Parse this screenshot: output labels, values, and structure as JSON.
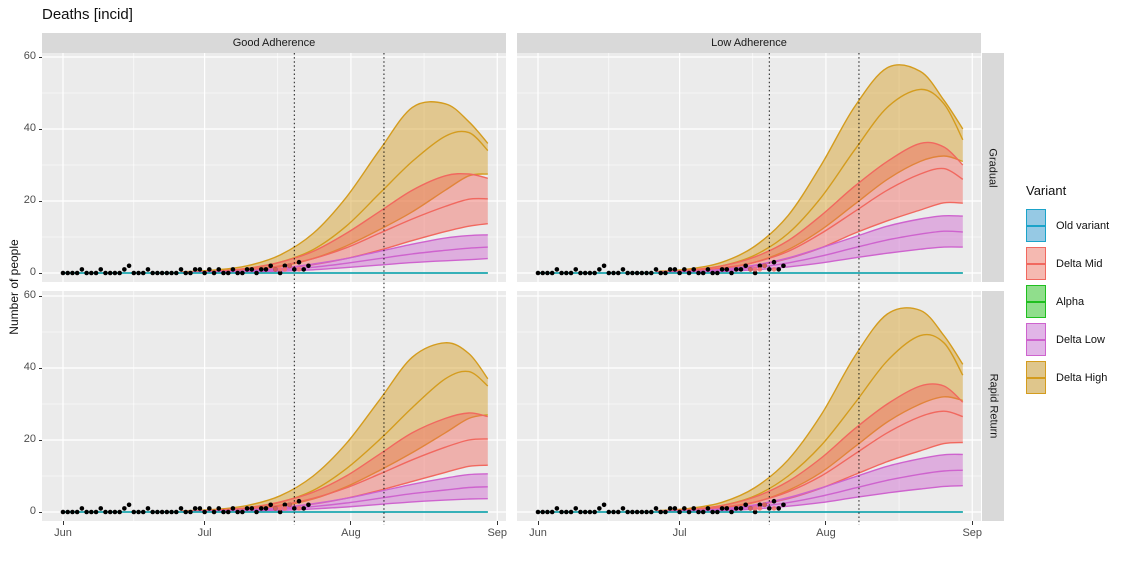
{
  "title": "Deaths [incid]",
  "legend": {
    "title": "Variant",
    "items": [
      {
        "id": "old_variant",
        "label": "Old variant",
        "line": "#1ba3c9",
        "fill": "#96c9e4"
      },
      {
        "id": "delta_mid",
        "label": "Delta Mid",
        "line": "#f1685f",
        "fill": "#f5b9b1"
      },
      {
        "id": "alpha",
        "label": "Alpha",
        "line": "#1fbf1f",
        "fill": "#90de8c"
      },
      {
        "id": "delta_low",
        "label": "Delta Low",
        "line": "#ce63ce",
        "fill": "#e1b5e7"
      },
      {
        "id": "delta_high",
        "label": "Delta High",
        "line": "#d49c1e",
        "fill": "#dfc68c"
      }
    ]
  },
  "chart_data": {
    "type": "area",
    "title": "Deaths [incid]",
    "xlabel": "",
    "ylabel": "Number of people",
    "y_ticks": [
      0,
      20,
      40,
      60
    ],
    "y_minor": [
      10,
      30,
      50
    ],
    "ylim": [
      0,
      60
    ],
    "x_ticks": {
      "labels": [
        "Jun",
        "Jul",
        "Aug",
        "Sep"
      ],
      "days": [
        0,
        30,
        61,
        92
      ]
    },
    "x_minor_days": [
      15,
      45.5,
      76.5
    ],
    "vlines_days": [
      49,
      68
    ],
    "grid": "on",
    "legend_position": "right",
    "facets": {
      "cols": [
        "Good Adherence",
        "Low Adherence"
      ],
      "rows": [
        "Gradual",
        "Rapid Return"
      ]
    },
    "series_days": [
      25,
      32,
      39,
      46,
      53,
      60,
      67,
      74,
      81,
      86,
      90
    ],
    "panels": [
      {
        "facet_col": "Good Adherence",
        "facet_row": "Gradual",
        "series": {
          "delta_high": {
            "hi": [
              0.3,
              0.8,
              2,
              5,
              11,
              21,
              34,
              46,
              47,
              42,
              36
            ],
            "mid": [
              0.2,
              0.5,
              1.2,
              3,
              6.5,
              13,
              22,
              31,
              38,
              39,
              34
            ],
            "lo": [
              0.1,
              0.3,
              0.8,
              1.8,
              4,
              7.5,
              12,
              17,
              23,
              27,
              27.5
            ]
          },
          "delta_mid": {
            "hi": [
              0.2,
              0.5,
              1.3,
              3,
              6,
              11,
              17,
              23,
              27,
              27.5,
              26.3
            ],
            "mid": [
              0.15,
              0.35,
              0.9,
              2,
              4,
              7,
              11,
              15,
              18.5,
              20.5,
              20.6
            ],
            "lo": [
              0.1,
              0.2,
              0.5,
              1.2,
              2.3,
              4,
              6.3,
              9,
              11.5,
              13,
              13.7
            ]
          },
          "delta_low": {
            "hi": [
              0.1,
              0.3,
              0.6,
              1.3,
              2.5,
              4,
              6,
              8,
              9.7,
              10.4,
              10.6
            ],
            "mid": [
              0.08,
              0.2,
              0.4,
              0.9,
              1.6,
              2.7,
              4,
              5.3,
              6.3,
              6.9,
              7.2
            ],
            "lo": [
              0.05,
              0.12,
              0.25,
              0.5,
              0.9,
              1.5,
              2.2,
              2.9,
              3.4,
              3.7,
              4
            ]
          },
          "alpha": {
            "flat": 0
          },
          "old_variant": {
            "flat": 0
          }
        }
      },
      {
        "facet_col": "Low Adherence",
        "facet_row": "Gradual",
        "series": {
          "delta_high": {
            "hi": [
              0.4,
              1.1,
              3,
              7.5,
              16,
              30,
              46,
              57,
              56,
              48,
              40
            ],
            "mid": [
              0.3,
              0.8,
              2,
              5,
              11,
              21,
              34,
              46,
              51,
              47,
              37
            ],
            "lo": [
              0.15,
              0.5,
              1.2,
              3,
              6.5,
              12,
              19,
              26,
              31,
              32.5,
              31
            ]
          },
          "delta_mid": {
            "hi": [
              0.3,
              0.8,
              2,
              4.5,
              9,
              16,
              24,
              31,
              36,
              35,
              30
            ],
            "mid": [
              0.2,
              0.55,
              1.4,
              3,
              6,
              11,
              17,
              23,
              27.5,
              29,
              26
            ],
            "lo": [
              0.12,
              0.35,
              0.9,
              2,
              4,
              7,
              11,
              14.5,
              17.5,
              19.5,
              19.4
            ]
          },
          "delta_low": {
            "hi": [
              0.15,
              0.4,
              1,
              2.2,
              4.2,
              7,
              10,
              13,
              15,
              15.9,
              15.8
            ],
            "mid": [
              0.1,
              0.3,
              0.7,
              1.5,
              2.8,
              4.7,
              7,
              9.2,
              10.8,
              11.6,
              11.4
            ],
            "lo": [
              0.06,
              0.18,
              0.4,
              0.9,
              1.7,
              2.8,
              4.2,
              5.5,
              6.6,
              7.2,
              7.2
            ]
          },
          "alpha": {
            "flat": 0
          },
          "old_variant": {
            "flat": 0
          }
        }
      },
      {
        "facet_col": "Good Adherence",
        "facet_row": "Rapid Return",
        "series": {
          "delta_high": {
            "hi": [
              0.3,
              0.7,
              1.8,
              4.5,
              10,
              19,
              31,
              43,
              47,
              44,
              37
            ],
            "mid": [
              0.2,
              0.45,
              1.1,
              2.7,
              6,
              12,
              20,
              29,
              37,
              39,
              35
            ],
            "lo": [
              0.1,
              0.28,
              0.7,
              1.6,
              3.6,
              7,
              11.5,
              16.5,
              22,
              26,
              27
            ]
          },
          "delta_mid": {
            "hi": [
              0.2,
              0.5,
              1.2,
              2.8,
              5.5,
              10,
              16,
              22,
              26,
              27.5,
              26.5
            ],
            "mid": [
              0.15,
              0.33,
              0.8,
              1.9,
              3.8,
              6.7,
              10.5,
              14.5,
              18,
              20,
              20.3
            ],
            "lo": [
              0.1,
              0.2,
              0.5,
              1.1,
              2.2,
              3.8,
              6,
              8.5,
              11,
              12.7,
              13
            ]
          },
          "delta_low": {
            "hi": [
              0.1,
              0.28,
              0.6,
              1.2,
              2.3,
              3.8,
              5.7,
              7.7,
              9.4,
              10.4,
              10.6
            ],
            "mid": [
              0.08,
              0.18,
              0.38,
              0.85,
              1.5,
              2.5,
              3.8,
              5.1,
              6.1,
              6.8,
              7
            ],
            "lo": [
              0.05,
              0.11,
              0.23,
              0.47,
              0.85,
              1.4,
              2.1,
              2.8,
              3.3,
              3.6,
              3.7
            ]
          },
          "alpha": {
            "flat": 0
          },
          "old_variant": {
            "flat": 0
          }
        }
      },
      {
        "facet_col": "Low Adherence",
        "facet_row": "Rapid Return",
        "series": {
          "delta_high": {
            "hi": [
              0.35,
              1,
              2.7,
              6.8,
              14.5,
              27,
              43,
              55,
              56,
              49,
              41
            ],
            "mid": [
              0.25,
              0.7,
              1.8,
              4.5,
              10,
              18.5,
              30,
              42,
              49,
              47,
              38
            ],
            "lo": [
              0.13,
              0.45,
              1.1,
              2.7,
              6,
              11,
              18,
              25,
              30,
              32,
              31
            ]
          },
          "delta_mid": {
            "hi": [
              0.25,
              0.7,
              1.8,
              4.2,
              8.5,
              15,
              23,
              30,
              35,
              35,
              30.5
            ],
            "mid": [
              0.18,
              0.5,
              1.3,
              2.8,
              5.6,
              10,
              16,
              22,
              26.5,
              28,
              26.5
            ],
            "lo": [
              0.1,
              0.3,
              0.8,
              1.8,
              3.7,
              6.6,
              10.3,
              14,
              17,
              19,
              19.3
            ]
          },
          "delta_low": {
            "hi": [
              0.13,
              0.36,
              0.9,
              2,
              4,
              6.7,
              9.7,
              12.7,
              14.8,
              15.9,
              16
            ],
            "mid": [
              0.09,
              0.27,
              0.64,
              1.4,
              2.6,
              4.4,
              6.6,
              8.8,
              10.5,
              11.4,
              11.6
            ],
            "lo": [
              0.055,
              0.16,
              0.37,
              0.84,
              1.6,
              2.6,
              4,
              5.3,
              6.4,
              7.1,
              7.3
            ]
          },
          "alpha": {
            "flat": 0
          },
          "old_variant": {
            "flat": 0
          }
        }
      }
    ],
    "observed_points": {
      "color": "#000000",
      "days": [
        0,
        1,
        2,
        3,
        4,
        5,
        6,
        7,
        8,
        9,
        10,
        11,
        12,
        13,
        14,
        15,
        16,
        17,
        18,
        19,
        20,
        21,
        22,
        23,
        24,
        25,
        26,
        27,
        28,
        29,
        30,
        31,
        32,
        33,
        34,
        35,
        36,
        37,
        38,
        39,
        40,
        41,
        42,
        43,
        44,
        45,
        46,
        47,
        48,
        49,
        50,
        51,
        52
      ],
      "values": [
        0,
        0,
        0,
        0,
        1,
        0,
        0,
        0,
        1,
        0,
        0,
        0,
        0,
        1,
        2,
        0,
        0,
        0,
        1,
        0,
        0,
        0,
        0,
        0,
        0,
        1,
        0,
        0,
        1,
        1,
        0,
        1,
        0,
        1,
        0,
        0,
        1,
        0,
        0,
        1,
        1,
        0,
        1,
        1,
        2,
        1,
        0,
        2,
        2,
        1,
        3,
        1,
        2
      ]
    },
    "recent_points": {
      "color": "#f4736b",
      "days": [
        45,
        46,
        47,
        48,
        50
      ],
      "values": [
        1,
        1,
        1,
        2,
        1
      ]
    },
    "panel_bg": "#ebebeb",
    "strip_bg": "#d9d9d9",
    "grid_color": "#ffffff",
    "vline_color": "#000000"
  }
}
